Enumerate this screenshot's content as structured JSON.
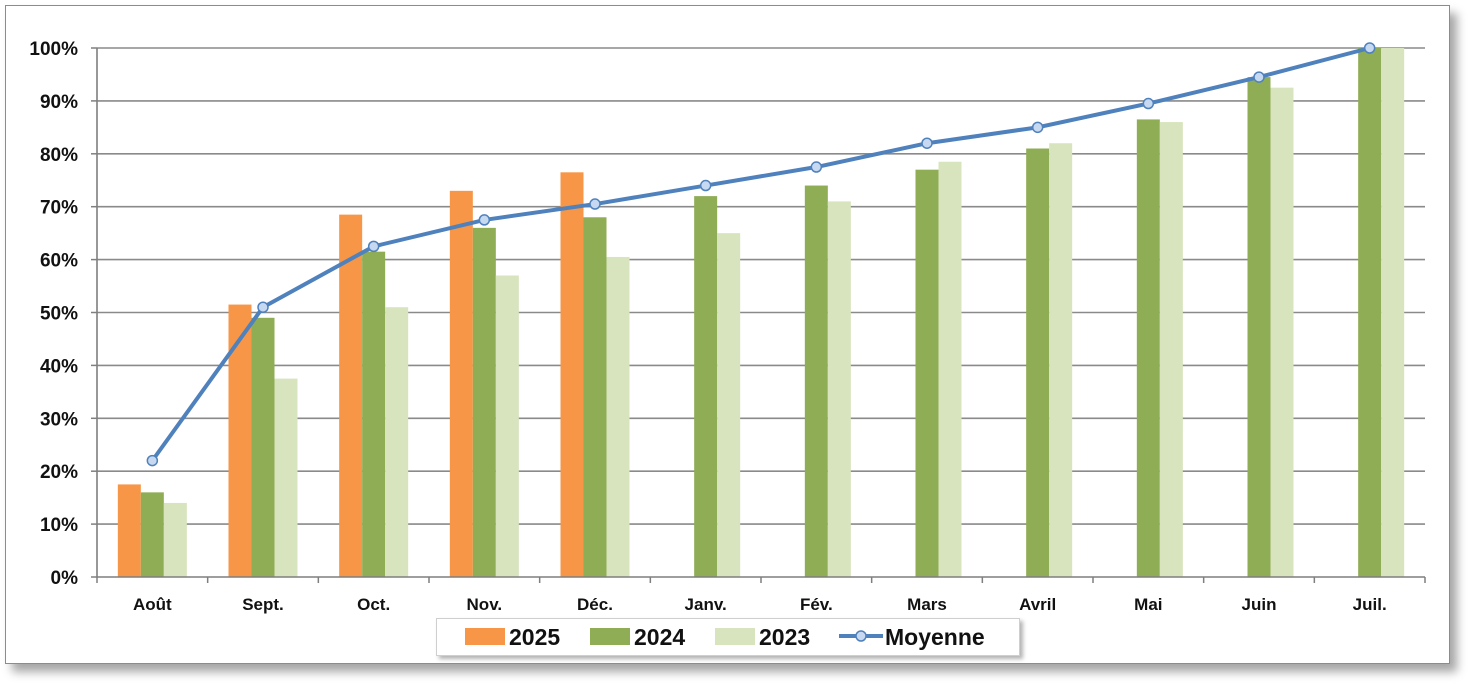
{
  "chart_data": {
    "type": "bar",
    "categories": [
      "Août",
      "Sept.",
      "Oct.",
      "Nov.",
      "Déc.",
      "Janv.",
      "Fév.",
      "Mars",
      "Avril",
      "Mai",
      "Juin",
      "Juil."
    ],
    "series": [
      {
        "name": "2025",
        "type": "bar",
        "color": "#f79646",
        "values": [
          17.5,
          51.5,
          68.5,
          73,
          76.5,
          null,
          null,
          null,
          null,
          null,
          null,
          null
        ]
      },
      {
        "name": "2024",
        "type": "bar",
        "color": "#8fad55",
        "values": [
          16,
          49,
          61.5,
          66,
          68,
          72,
          74,
          77,
          81,
          86.5,
          94.5,
          100
        ]
      },
      {
        "name": "2023",
        "type": "bar",
        "color": "#d7e4bd",
        "values": [
          14,
          37.5,
          51,
          57,
          60.5,
          65,
          71,
          78.5,
          82,
          86,
          92.5,
          100
        ]
      },
      {
        "name": "Moyenne",
        "type": "line",
        "color": "#4f81bd",
        "values": [
          22,
          51,
          62.5,
          67.5,
          70.5,
          74,
          77.5,
          82,
          85,
          89.5,
          94.5,
          100
        ]
      }
    ],
    "yticks": [
      "0%",
      "10%",
      "20%",
      "30%",
      "40%",
      "50%",
      "60%",
      "70%",
      "80%",
      "90%",
      "100%"
    ],
    "ylim": [
      0,
      100
    ],
    "grid": true,
    "legend_position": "bottom",
    "title": "",
    "xlabel": "",
    "ylabel": ""
  }
}
